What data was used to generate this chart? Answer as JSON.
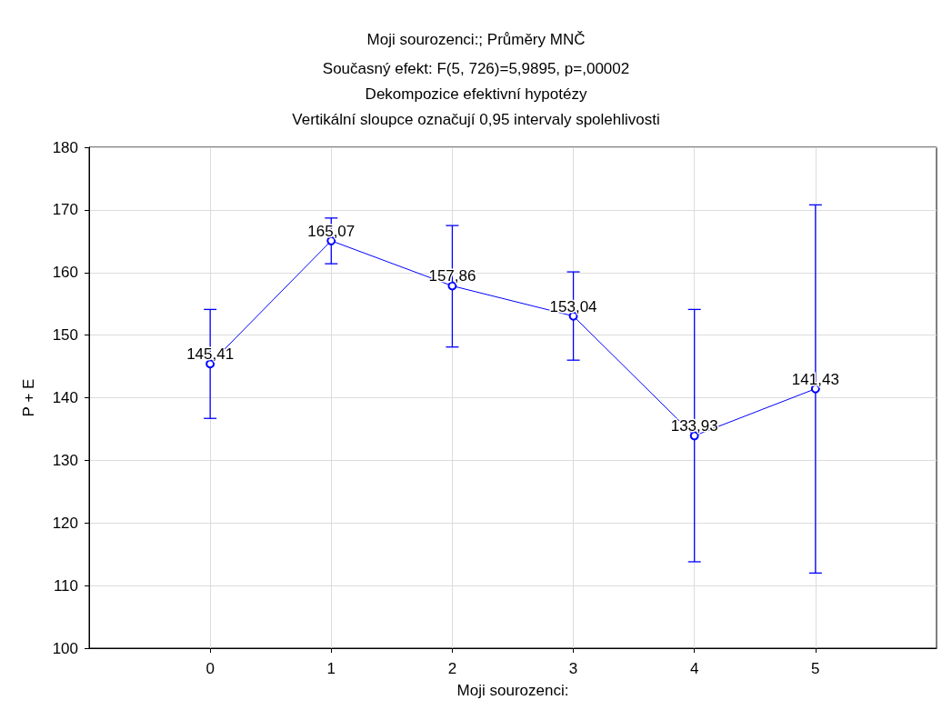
{
  "chart_data": {
    "type": "line",
    "title": "Moji sourozenci:; Průměry MNČ",
    "subtitle": "Současný efekt: F(5, 726)=5,9895, p=,00002\nDekompozice efektivní hypotézy\nVertikální sloupce označují 0,95 intervaly spolehlivosti",
    "xlabel": "Moji sourozenci:",
    "ylabel": "P + E",
    "x": [
      0,
      1,
      2,
      3,
      4,
      5
    ],
    "series": [
      {
        "color": "#0000ff",
        "values": [
          145.41,
          165.07,
          157.86,
          153.04,
          133.93,
          141.43
        ],
        "value_labels": [
          "145,41",
          "165,07",
          "157,86",
          "153,04",
          "133,93",
          "141,43"
        ],
        "errors": [
          [
            136.7,
            154.1
          ],
          [
            161.4,
            168.7
          ],
          [
            148.1,
            167.5
          ],
          [
            146.0,
            160.1
          ],
          [
            113.8,
            154.1
          ],
          [
            112.0,
            170.8
          ]
        ]
      }
    ],
    "xlim": [
      -1,
      6
    ],
    "xticks": [
      0,
      1,
      2,
      3,
      4,
      5
    ],
    "ylim": [
      100,
      180
    ],
    "yticks": [
      100,
      110,
      120,
      130,
      140,
      150,
      160,
      170,
      180
    ],
    "grid": true,
    "marker": "circle",
    "line_style": "solid",
    "legend": false
  }
}
